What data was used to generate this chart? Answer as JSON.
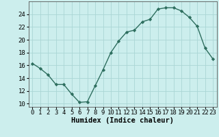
{
  "x": [
    0,
    1,
    2,
    3,
    4,
    5,
    6,
    7,
    8,
    9,
    10,
    11,
    12,
    13,
    14,
    15,
    16,
    17,
    18,
    19,
    20,
    21,
    22,
    23
  ],
  "y": [
    16.3,
    15.5,
    14.5,
    13.0,
    13.0,
    11.5,
    10.2,
    10.3,
    12.8,
    15.3,
    18.0,
    19.8,
    21.2,
    21.5,
    22.8,
    23.2,
    24.8,
    25.0,
    25.0,
    24.5,
    23.5,
    22.1,
    18.7,
    17.0
  ],
  "line_color": "#2d6e5e",
  "marker": "D",
  "marker_size": 2.2,
  "bg_color": "#cceeed",
  "grid_color": "#aad6d5",
  "xlabel": "Humidex (Indice chaleur)",
  "xlim": [
    -0.5,
    23.5
  ],
  "ylim": [
    9.5,
    26
  ],
  "yticks": [
    10,
    12,
    14,
    16,
    18,
    20,
    22,
    24
  ],
  "xticks": [
    0,
    1,
    2,
    3,
    4,
    5,
    6,
    7,
    8,
    9,
    10,
    11,
    12,
    13,
    14,
    15,
    16,
    17,
    18,
    19,
    20,
    21,
    22,
    23
  ],
  "xlabel_fontsize": 7.5,
  "tick_fontsize": 6.5,
  "line_width": 1.0,
  "spine_color": "#555555"
}
